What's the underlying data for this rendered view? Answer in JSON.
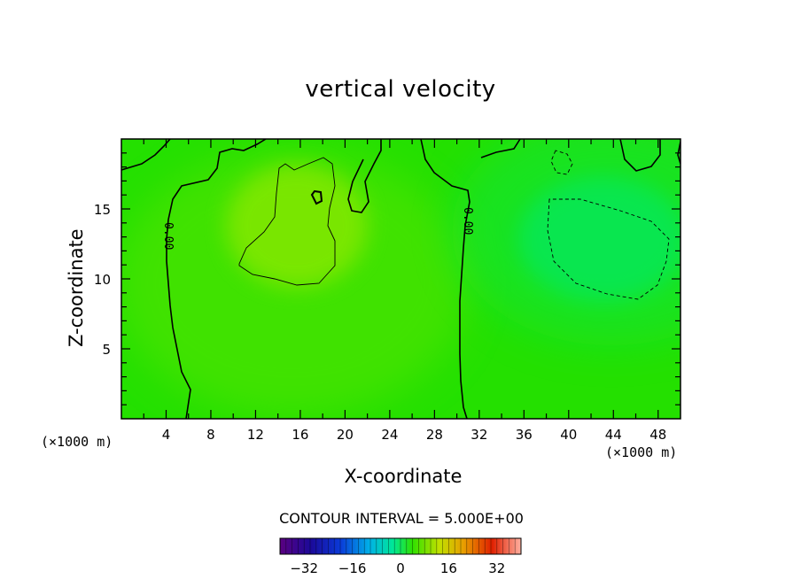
{
  "chart_data": {
    "type": "heatmap",
    "title": "vertical velocity",
    "xlabel": "X-coordinate",
    "ylabel": "Z-coordinate",
    "x_unit_left": "(×1000 m)",
    "x_unit_right": "(×1000 m)",
    "xlim": [
      0,
      50
    ],
    "ylim": [
      0,
      20
    ],
    "x_ticks": [
      4,
      8,
      12,
      16,
      20,
      24,
      28,
      32,
      36,
      40,
      44,
      48
    ],
    "y_ticks": [
      5,
      10,
      15
    ],
    "contour_labels": [
      "0.00",
      "0.00"
    ],
    "contour_interval_text": "CONTOUR INTERVAL = 5.000E+00",
    "colorbar": {
      "ticks": [
        -32,
        -16,
        0,
        16,
        32
      ],
      "range": [
        -40,
        40
      ],
      "colormap": "rainbow (purple-blue-cyan-green-yellow-red)"
    },
    "field_features": [
      {
        "kind": "updraft maximum",
        "x_center": 17,
        "z_center": 13,
        "approx_value": 5
      },
      {
        "kind": "downdraft minimum",
        "x_center": 42,
        "z_center": 12.5,
        "approx_value": -5
      }
    ],
    "background_color": "#22e000"
  }
}
